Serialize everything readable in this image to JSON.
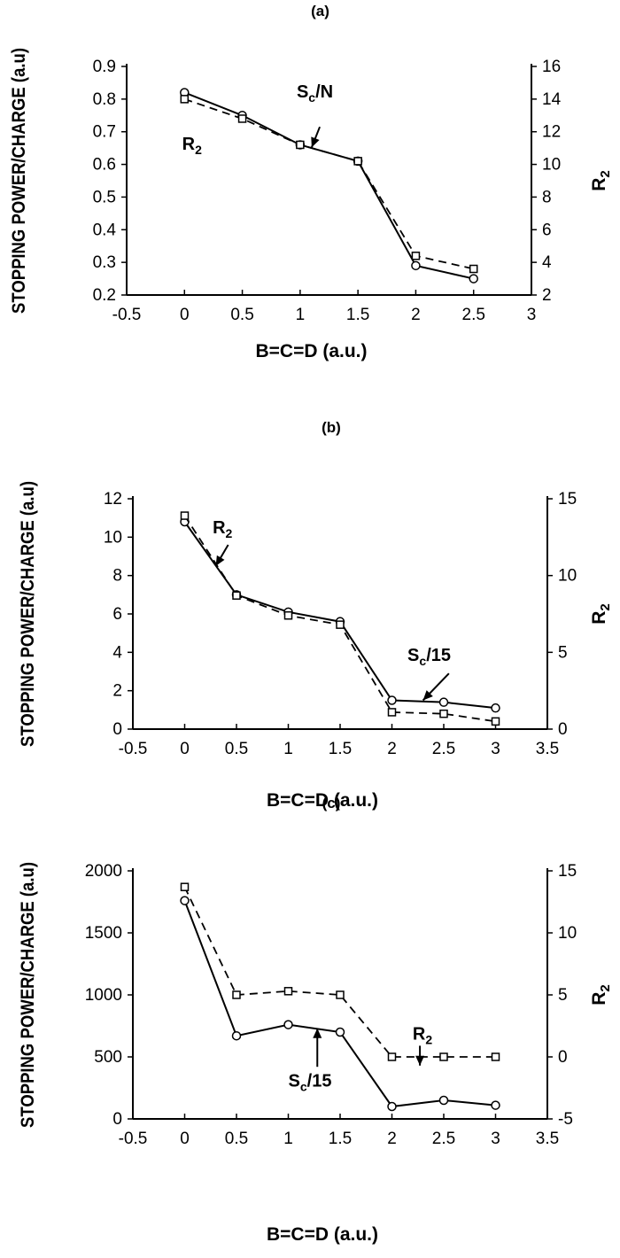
{
  "chart_data": [
    {
      "panel": "(a)",
      "type": "line",
      "xlabel": "B=C=D (a.u.)",
      "ylabel": "STOPPING POWER/CHARGE (a.u)",
      "y2label": "R2",
      "xlim": [
        -0.5,
        3
      ],
      "ylim": [
        0.2,
        0.9
      ],
      "y2lim": [
        2,
        16
      ],
      "xticks": [
        "-0.5",
        "0",
        "0.5",
        "1",
        "1.5",
        "2",
        "2.5",
        "3"
      ],
      "yticks": [
        "0.2",
        "0.3",
        "0.4",
        "0.5",
        "0.6",
        "0.7",
        "0.8",
        "0.9"
      ],
      "y2ticks": [
        "2",
        "4",
        "6",
        "8",
        "10",
        "12",
        "14",
        "16"
      ],
      "grid": false,
      "series": [
        {
          "name": "Sc/N",
          "axis": "left",
          "marker": "circle",
          "line": "solid",
          "x": [
            0,
            0.5,
            1,
            1.5,
            2,
            2.5
          ],
          "values": [
            0.82,
            0.75,
            0.66,
            0.61,
            0.29,
            0.25
          ]
        },
        {
          "name": "R2",
          "axis": "right",
          "marker": "square",
          "line": "dashed",
          "x": [
            0,
            0.5,
            1,
            1.5,
            2,
            2.5
          ],
          "values": [
            14,
            12.8,
            11.2,
            10.2,
            4.4,
            3.6
          ]
        }
      ],
      "annotations": [
        {
          "text": "R",
          "sub": "2",
          "xd": -0.02,
          "yd": 0.645,
          "arrow": null
        },
        {
          "text": "S",
          "sub": "c",
          "tail": "/N",
          "xd": 0.97,
          "yd": 0.805,
          "arrow": [
            1.17,
            0.715,
            1.1,
            0.652
          ]
        }
      ]
    },
    {
      "panel": "(b)",
      "type": "line",
      "xlabel": "B=C=D (a.u.)",
      "ylabel": "STOPPING POWER/CHARGE (a.u)",
      "y2label": "R2",
      "xlim": [
        -0.5,
        3.5
      ],
      "ylim": [
        0,
        12
      ],
      "y2lim": [
        0,
        15
      ],
      "xticks": [
        "-0.5",
        "0",
        "0.5",
        "1",
        "1.5",
        "2",
        "2.5",
        "3",
        "3.5"
      ],
      "yticks": [
        "0",
        "2",
        "4",
        "6",
        "8",
        "10",
        "12"
      ],
      "y2ticks": [
        "0",
        "5",
        "10",
        "15"
      ],
      "grid": false,
      "series": [
        {
          "name": "Sc/15",
          "axis": "left",
          "marker": "circle",
          "line": "solid",
          "x": [
            0,
            0.5,
            1,
            1.5,
            2,
            2.5,
            3
          ],
          "values": [
            10.8,
            7,
            6.1,
            5.6,
            1.5,
            1.4,
            1.1
          ]
        },
        {
          "name": "R2",
          "axis": "right",
          "marker": "square",
          "line": "dashed",
          "x": [
            0,
            0.5,
            1,
            1.5,
            2,
            2.5,
            3
          ],
          "values": [
            13.9,
            8.7,
            7.4,
            6.8,
            1.1,
            1.0,
            0.5
          ]
        }
      ],
      "annotations": [
        {
          "text": "R",
          "sub": "2",
          "xd": 0.27,
          "yd": 10.2,
          "arrow": [
            0.42,
            9.6,
            0.3,
            8.5
          ]
        },
        {
          "text": "S",
          "sub": "c",
          "tail": "/15",
          "xd": 2.15,
          "yd": 3.55,
          "arrow": [
            2.55,
            2.9,
            2.3,
            1.5
          ]
        }
      ]
    },
    {
      "panel": "(c)",
      "type": "line",
      "xlabel": "B=C=D (a.u.)",
      "ylabel": "STOPPING POWER/CHARGE (a.u)",
      "y2label": "R2",
      "xlim": [
        -0.5,
        3.5
      ],
      "ylim": [
        0,
        2000
      ],
      "y2lim": [
        -5,
        15
      ],
      "xticks": [
        "-0.5",
        "0",
        "0.5",
        "1",
        "1.5",
        "2",
        "2.5",
        "3",
        "3.5"
      ],
      "yticks": [
        "0",
        "500",
        "1000",
        "1500",
        "2000"
      ],
      "y2ticks": [
        "-5",
        "0",
        "5",
        "10",
        "15"
      ],
      "grid": false,
      "series": [
        {
          "name": "Sc/15",
          "axis": "left",
          "marker": "circle",
          "line": "solid",
          "x": [
            0,
            0.5,
            1,
            1.5,
            2,
            2.5,
            3
          ],
          "values": [
            1760,
            670,
            760,
            700,
            100,
            150,
            110
          ]
        },
        {
          "name": "R2",
          "axis": "right",
          "marker": "square",
          "line": "dashed",
          "x": [
            0,
            0.5,
            1,
            1.5,
            2,
            2.5,
            3
          ],
          "values": [
            13.7,
            5,
            5.3,
            5,
            0,
            0,
            0
          ]
        }
      ],
      "annotations": [
        {
          "text": "R",
          "sub": "2",
          "xd": 2.2,
          "yd": 640,
          "arrow": [
            2.27,
            590,
            2.27,
            430
          ]
        },
        {
          "text": "S",
          "sub": "c",
          "tail": "/15",
          "xd": 1.0,
          "yd": 260,
          "arrow": [
            1.28,
            420,
            1.28,
            730
          ]
        }
      ]
    }
  ]
}
